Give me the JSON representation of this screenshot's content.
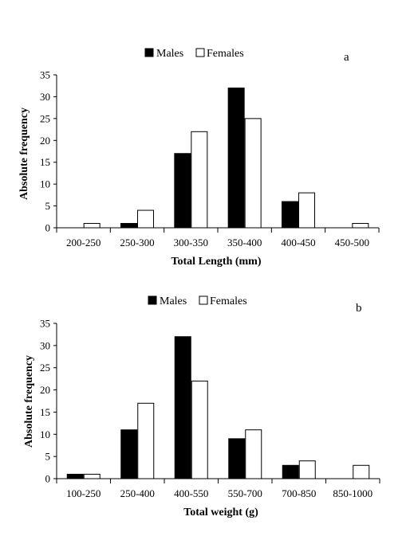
{
  "chart_data": [
    {
      "type": "bar",
      "panel_label": "a",
      "categories": [
        "200-250",
        "250-300",
        "300-350",
        "350-400",
        "400-450",
        "450-500"
      ],
      "series": [
        {
          "name": "Males",
          "values": [
            0,
            1,
            17,
            32,
            6,
            0
          ],
          "color": "#000000"
        },
        {
          "name": "Females",
          "values": [
            1,
            4,
            22,
            25,
            8,
            1
          ],
          "color": "#ffffff"
        }
      ],
      "xlabel": "Total Length (mm)",
      "ylabel": "Absolute frequency",
      "ylim": [
        0,
        35
      ],
      "yticks": [
        0,
        5,
        10,
        15,
        20,
        25,
        30,
        35
      ],
      "legend_position": "top-center",
      "grid": false
    },
    {
      "type": "bar",
      "panel_label": "b",
      "categories": [
        "100-250",
        "250-400",
        "400-550",
        "550-700",
        "700-850",
        "850-1000"
      ],
      "series": [
        {
          "name": "Males",
          "values": [
            1,
            11,
            32,
            9,
            3,
            0
          ],
          "color": "#000000"
        },
        {
          "name": "Females",
          "values": [
            1,
            17,
            22,
            11,
            4,
            3
          ],
          "color": "#ffffff"
        }
      ],
      "xlabel": "Total weight (g)",
      "ylabel": "Absolute frequency",
      "ylim": [
        0,
        35
      ],
      "yticks": [
        0,
        5,
        10,
        15,
        20,
        25,
        30,
        35
      ],
      "legend_position": "top-center",
      "grid": false
    }
  ]
}
